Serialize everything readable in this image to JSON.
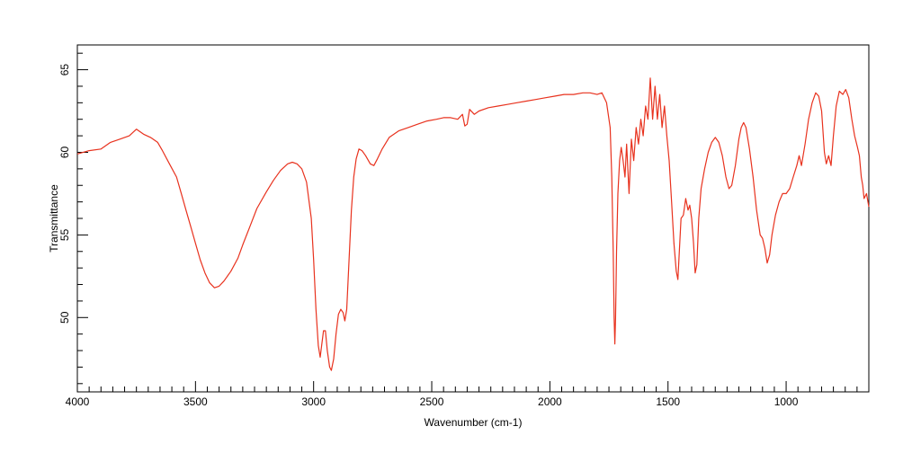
{
  "chart_data": {
    "type": "line",
    "title": "",
    "xlabel": "Wavenumber (cm-1)",
    "ylabel": "Transmittance",
    "xlim": [
      4000,
      650
    ],
    "ylim": [
      45.5,
      66.5
    ],
    "x_reversed": true,
    "grid": false,
    "legend": "none",
    "x_ticks": [
      "4000",
      "3500",
      "3000",
      "2500",
      "2000",
      "1500",
      "1000"
    ],
    "x_tick_values": [
      4000,
      3500,
      3000,
      2500,
      2000,
      1500,
      1000
    ],
    "y_ticks": [
      "50",
      "55",
      "60",
      "65"
    ],
    "y_tick_values": [
      50,
      55,
      60,
      65
    ],
    "series": [
      {
        "color": "#e8321e",
        "points": [
          [
            4000,
            59.9
          ],
          [
            3950,
            60.1
          ],
          [
            3900,
            60.2
          ],
          [
            3860,
            60.6
          ],
          [
            3820,
            60.8
          ],
          [
            3780,
            61.0
          ],
          [
            3750,
            61.4
          ],
          [
            3720,
            61.1
          ],
          [
            3690,
            60.9
          ],
          [
            3660,
            60.6
          ],
          [
            3640,
            60.1
          ],
          [
            3610,
            59.3
          ],
          [
            3580,
            58.5
          ],
          [
            3560,
            57.5
          ],
          [
            3540,
            56.5
          ],
          [
            3520,
            55.5
          ],
          [
            3500,
            54.5
          ],
          [
            3480,
            53.5
          ],
          [
            3460,
            52.7
          ],
          [
            3440,
            52.1
          ],
          [
            3420,
            51.8
          ],
          [
            3400,
            51.9
          ],
          [
            3380,
            52.2
          ],
          [
            3350,
            52.8
          ],
          [
            3320,
            53.6
          ],
          [
            3300,
            54.4
          ],
          [
            3270,
            55.5
          ],
          [
            3240,
            56.6
          ],
          [
            3200,
            57.6
          ],
          [
            3170,
            58.3
          ],
          [
            3140,
            58.9
          ],
          [
            3110,
            59.3
          ],
          [
            3090,
            59.4
          ],
          [
            3070,
            59.3
          ],
          [
            3050,
            59.0
          ],
          [
            3030,
            58.2
          ],
          [
            3010,
            56.0
          ],
          [
            3000,
            53.5
          ],
          [
            2990,
            50.5
          ],
          [
            2980,
            48.3
          ],
          [
            2972,
            47.6
          ],
          [
            2966,
            48.3
          ],
          [
            2958,
            49.2
          ],
          [
            2950,
            49.2
          ],
          [
            2942,
            48.0
          ],
          [
            2932,
            47.0
          ],
          [
            2925,
            46.8
          ],
          [
            2915,
            47.5
          ],
          [
            2905,
            49.0
          ],
          [
            2895,
            50.2
          ],
          [
            2885,
            50.5
          ],
          [
            2875,
            50.3
          ],
          [
            2868,
            49.8
          ],
          [
            2860,
            50.5
          ],
          [
            2850,
            53.5
          ],
          [
            2840,
            56.5
          ],
          [
            2830,
            58.5
          ],
          [
            2820,
            59.6
          ],
          [
            2808,
            60.2
          ],
          [
            2795,
            60.1
          ],
          [
            2780,
            59.8
          ],
          [
            2760,
            59.3
          ],
          [
            2745,
            59.2
          ],
          [
            2730,
            59.6
          ],
          [
            2710,
            60.2
          ],
          [
            2680,
            60.9
          ],
          [
            2640,
            61.3
          ],
          [
            2600,
            61.5
          ],
          [
            2560,
            61.7
          ],
          [
            2520,
            61.9
          ],
          [
            2480,
            62.0
          ],
          [
            2450,
            62.1
          ],
          [
            2420,
            62.1
          ],
          [
            2390,
            62.0
          ],
          [
            2370,
            62.3
          ],
          [
            2360,
            61.6
          ],
          [
            2350,
            61.7
          ],
          [
            2340,
            62.6
          ],
          [
            2320,
            62.3
          ],
          [
            2300,
            62.5
          ],
          [
            2260,
            62.7
          ],
          [
            2220,
            62.8
          ],
          [
            2180,
            62.9
          ],
          [
            2140,
            63.0
          ],
          [
            2100,
            63.1
          ],
          [
            2060,
            63.2
          ],
          [
            2020,
            63.3
          ],
          [
            1980,
            63.4
          ],
          [
            1940,
            63.5
          ],
          [
            1900,
            63.5
          ],
          [
            1860,
            63.6
          ],
          [
            1830,
            63.6
          ],
          [
            1800,
            63.5
          ],
          [
            1780,
            63.6
          ],
          [
            1760,
            63.0
          ],
          [
            1745,
            61.5
          ],
          [
            1738,
            58.5
          ],
          [
            1732,
            54.0
          ],
          [
            1728,
            50.0
          ],
          [
            1725,
            48.4
          ],
          [
            1722,
            50.0
          ],
          [
            1718,
            54.0
          ],
          [
            1712,
            57.5
          ],
          [
            1705,
            59.5
          ],
          [
            1698,
            60.3
          ],
          [
            1690,
            59.5
          ],
          [
            1682,
            58.5
          ],
          [
            1675,
            60.5
          ],
          [
            1665,
            57.5
          ],
          [
            1655,
            60.8
          ],
          [
            1645,
            59.5
          ],
          [
            1635,
            61.5
          ],
          [
            1625,
            60.5
          ],
          [
            1615,
            62.0
          ],
          [
            1605,
            61.0
          ],
          [
            1595,
            62.8
          ],
          [
            1585,
            62.0
          ],
          [
            1575,
            64.5
          ],
          [
            1565,
            62.0
          ],
          [
            1555,
            64.0
          ],
          [
            1545,
            62.0
          ],
          [
            1535,
            63.5
          ],
          [
            1525,
            61.5
          ],
          [
            1515,
            62.8
          ],
          [
            1505,
            61.0
          ],
          [
            1495,
            59.5
          ],
          [
            1485,
            57.0
          ],
          [
            1475,
            54.5
          ],
          [
            1465,
            52.8
          ],
          [
            1458,
            52.3
          ],
          [
            1452,
            54.0
          ],
          [
            1445,
            56.0
          ],
          [
            1435,
            56.2
          ],
          [
            1425,
            57.2
          ],
          [
            1415,
            56.5
          ],
          [
            1408,
            56.8
          ],
          [
            1400,
            56.0
          ],
          [
            1392,
            54.5
          ],
          [
            1385,
            52.7
          ],
          [
            1378,
            53.2
          ],
          [
            1370,
            56.0
          ],
          [
            1360,
            57.8
          ],
          [
            1345,
            59.0
          ],
          [
            1330,
            60.0
          ],
          [
            1315,
            60.6
          ],
          [
            1300,
            60.9
          ],
          [
            1285,
            60.6
          ],
          [
            1270,
            59.8
          ],
          [
            1255,
            58.5
          ],
          [
            1242,
            57.8
          ],
          [
            1230,
            58.0
          ],
          [
            1215,
            59.2
          ],
          [
            1200,
            60.8
          ],
          [
            1190,
            61.5
          ],
          [
            1180,
            61.8
          ],
          [
            1170,
            61.5
          ],
          [
            1155,
            60.2
          ],
          [
            1140,
            58.5
          ],
          [
            1125,
            56.5
          ],
          [
            1110,
            55.0
          ],
          [
            1100,
            54.8
          ],
          [
            1090,
            54.2
          ],
          [
            1080,
            53.3
          ],
          [
            1070,
            53.8
          ],
          [
            1060,
            55.0
          ],
          [
            1045,
            56.2
          ],
          [
            1030,
            57.0
          ],
          [
            1015,
            57.5
          ],
          [
            1000,
            57.5
          ],
          [
            985,
            57.8
          ],
          [
            970,
            58.5
          ],
          [
            955,
            59.2
          ],
          [
            945,
            59.8
          ],
          [
            935,
            59.2
          ],
          [
            920,
            60.5
          ],
          [
            905,
            62.0
          ],
          [
            890,
            63.0
          ],
          [
            875,
            63.6
          ],
          [
            862,
            63.4
          ],
          [
            850,
            62.5
          ],
          [
            838,
            60.0
          ],
          [
            830,
            59.3
          ],
          [
            820,
            59.8
          ],
          [
            810,
            59.2
          ],
          [
            800,
            61.0
          ],
          [
            788,
            62.8
          ],
          [
            775,
            63.7
          ],
          [
            760,
            63.5
          ],
          [
            748,
            63.8
          ],
          [
            735,
            63.3
          ],
          [
            722,
            62.0
          ],
          [
            710,
            61.0
          ],
          [
            698,
            60.3
          ],
          [
            690,
            59.8
          ],
          [
            682,
            58.5
          ],
          [
            676,
            58.0
          ],
          [
            670,
            57.2
          ],
          [
            660,
            57.5
          ],
          [
            650,
            56.7
          ]
        ]
      }
    ]
  }
}
